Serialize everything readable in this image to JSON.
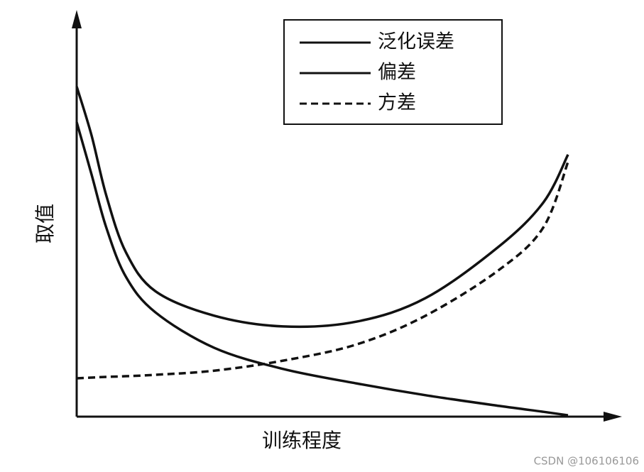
{
  "chart_data": {
    "type": "line",
    "x_label": "训练程度",
    "y_label": "取值",
    "x": [
      0,
      3,
      6,
      10,
      16,
      28,
      42,
      57,
      71,
      86,
      95,
      100
    ],
    "series": [
      {
        "name": "泛化误差",
        "color": "#111111",
        "style": "solid",
        "values": [
          95.5,
          81.5,
          64.1,
          47.6,
          36.3,
          29.2,
          26.1,
          27.5,
          34.3,
          49.3,
          62.0,
          75.8
        ]
      },
      {
        "name": "偏差",
        "color": "#111111",
        "style": "solid",
        "values": [
          85.2,
          70.2,
          54.8,
          40.5,
          30.2,
          19.9,
          13.8,
          9.6,
          6.2,
          3.1,
          1.4,
          0.4
        ]
      },
      {
        "name": "方差",
        "color": "#111111",
        "style": "dashed",
        "values": [
          11.1,
          11.3,
          11.5,
          11.7,
          12.1,
          13.3,
          16.2,
          20.9,
          29.2,
          42.5,
          54.8,
          73.7
        ]
      }
    ],
    "xlim": [
      0,
      100
    ],
    "ylim": [
      0,
      100
    ],
    "legend": "top-right",
    "watermark": "CSDN @106106106"
  }
}
